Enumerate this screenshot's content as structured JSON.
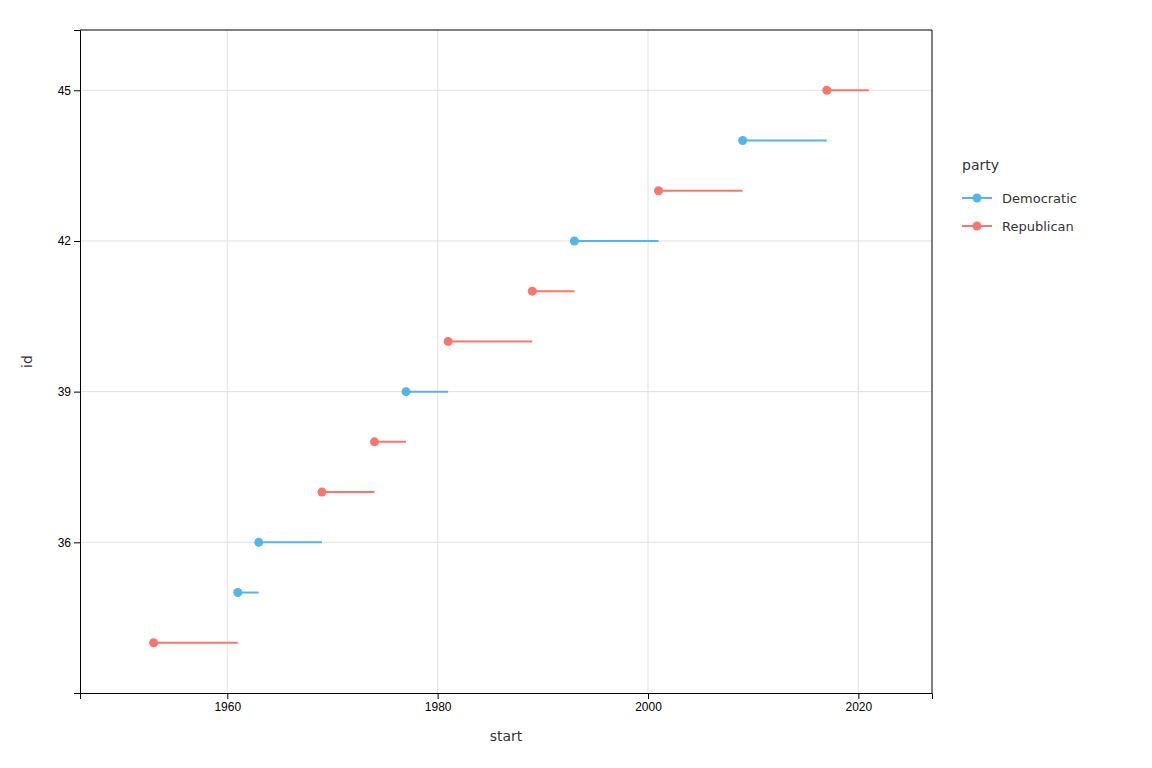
{
  "chart_data": {
    "type": "segment",
    "xlabel": "start",
    "ylabel": "id",
    "legend_title": "party",
    "series": [
      {
        "name": "Democratic",
        "color": "#56B4E9",
        "values": [
          35,
          36,
          39,
          42,
          44
        ],
        "x": [
          1961,
          1963,
          1977,
          1993,
          2009
        ],
        "x_end": [
          1963,
          1969,
          1981,
          2001,
          2017
        ]
      },
      {
        "name": "Republican",
        "color": "#F8766D",
        "values": [
          34,
          37,
          38,
          40,
          41,
          43,
          45
        ],
        "x": [
          1953,
          1969,
          1974,
          1981,
          1989,
          2001,
          2017
        ],
        "x_end": [
          1961,
          1974,
          1977,
          1989,
          1993,
          2009,
          2021
        ]
      }
    ],
    "marker": "circle",
    "xlim": [
      1946,
      2027
    ],
    "xticks": [
      1960,
      1980,
      2000,
      2020
    ],
    "ylim": [
      33.0,
      46.2
    ],
    "yticks": [
      36,
      39,
      42,
      45
    ],
    "grid": true,
    "legend": "right"
  }
}
